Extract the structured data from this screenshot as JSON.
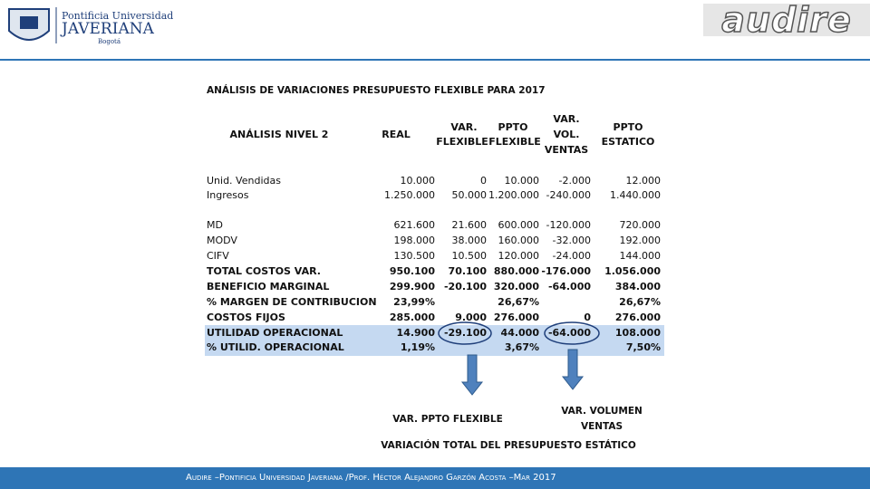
{
  "header": {
    "university_line1": "Pontificia Universidad",
    "university_line2": "JAVERIANA",
    "city": "Bogotá",
    "brand": "audire"
  },
  "title": "ANÁLISIS DE VARIACIONES PRESUPUESTO FLEXIBLE PARA 2017",
  "table": {
    "columns": [
      [
        "ANÁLISIS NIVEL 2"
      ],
      [
        "REAL"
      ],
      [
        "VAR.",
        "FLEXIBLE"
      ],
      [
        "PPTO",
        "FLEXIBLE"
      ],
      [
        "VAR.",
        "VOL.",
        "VENTAS"
      ],
      [
        "PPTO",
        "ESTATICO"
      ]
    ],
    "rows": [
      {
        "cells": [
          "Unid. Vendidas",
          "10.000",
          "0",
          "10.000",
          "-2.000",
          "12.000"
        ],
        "bold": false,
        "highlight": false
      },
      {
        "cells": [
          "Ingresos",
          "1.250.000",
          "50.000",
          "1.200.000",
          "-240.000",
          "1.440.000"
        ],
        "bold": false,
        "highlight": false
      },
      {
        "cells": [
          "MD",
          "621.600",
          "21.600",
          "600.000",
          "-120.000",
          "720.000"
        ],
        "bold": false,
        "highlight": false
      },
      {
        "cells": [
          "MODV",
          "198.000",
          "38.000",
          "160.000",
          "-32.000",
          "192.000"
        ],
        "bold": false,
        "highlight": false
      },
      {
        "cells": [
          "CIFV",
          "130.500",
          "10.500",
          "120.000",
          "-24.000",
          "144.000"
        ],
        "bold": false,
        "highlight": false
      },
      {
        "cells": [
          "TOTAL COSTOS VAR.",
          "950.100",
          "70.100",
          "880.000",
          "-176.000",
          "1.056.000"
        ],
        "bold": true,
        "highlight": false
      },
      {
        "cells": [
          "BENEFICIO MARGINAL",
          "299.900",
          "-20.100",
          "320.000",
          "-64.000",
          "384.000"
        ],
        "bold": true,
        "highlight": false
      },
      {
        "cells": [
          "% MARGEN DE CONTRIBUCION",
          "23,99%",
          null,
          "26,67%",
          null,
          "26,67%"
        ],
        "bold": true,
        "highlight": false
      },
      {
        "cells": [
          "COSTOS FIJOS",
          "285.000",
          "9.000",
          "276.000",
          "0",
          "276.000"
        ],
        "bold": true,
        "highlight": false
      },
      {
        "cells": [
          "UTILIDAD OPERACIONAL",
          "14.900",
          "-29.100",
          "44.000",
          "-64.000",
          "108.000"
        ],
        "bold": true,
        "highlight": true
      },
      {
        "cells": [
          "% UTILID. OPERACIONAL",
          "1,19%",
          null,
          "3,67%",
          null,
          "7,50%"
        ],
        "bold": true,
        "highlight": true
      }
    ]
  },
  "annotations": {
    "flexible": "VAR. PPTO FLEXIBLE",
    "volume": [
      "VAR. VOLUMEN",
      "VENTAS"
    ],
    "total": "VARIACIÓN TOTAL DEL PRESUPUESTO ESTÁTICO"
  },
  "footer": "Audire –Pontificia Universidad Javeriana /Prof. Héctor Alejandro Garzón Acosta –Mar 2017"
}
